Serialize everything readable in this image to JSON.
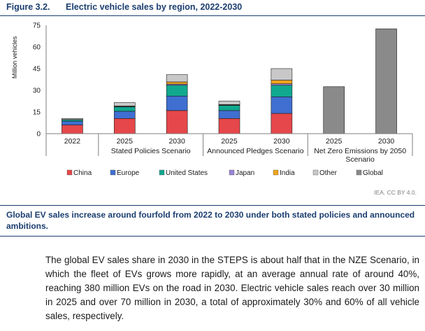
{
  "figure": {
    "number": "Figure 3.2.",
    "title": "Electric vehicle sales by region, 2022-2030",
    "credit": "IEA. CC BY 4.0.",
    "caption": "Global EV sales increase around fourfold from 2022 to 2030 under both stated policies and announced ambitions."
  },
  "body_text": "The global EV sales share in 2030 in the STEPS is about half that in the NZE Scenario, in which the fleet of EVs grows more rapidly, at an average annual rate of around 40%, reaching 380 million EVs on the road in 2030. Electric vehicle sales reach over 30 million in 2025 and over 70 million in 2030, a total of approximately 30% and 60% of all vehicle sales, respectively.",
  "chart_data": {
    "type": "bar",
    "stacked": true,
    "ylabel": "Million vehicles",
    "ylim": [
      0,
      75
    ],
    "yticks": [
      0,
      15,
      30,
      45,
      60,
      75
    ],
    "categories": [
      "2022",
      "2025",
      "2030",
      "2025",
      "2030",
      "2025",
      "2030"
    ],
    "groups": [
      {
        "label": "",
        "categories": [
          "2022"
        ]
      },
      {
        "label": "Stated Policies Scenario",
        "categories": [
          "2025",
          "2030"
        ]
      },
      {
        "label": "Announced Pledges Scenario",
        "categories": [
          "2025",
          "2030"
        ]
      },
      {
        "label": "Net Zero Emissions by 2050 Scenario",
        "categories": [
          "2025",
          "2030"
        ]
      }
    ],
    "series": [
      {
        "name": "China",
        "color": "#e6474a",
        "values": [
          6.0,
          10.5,
          16.0,
          10.5,
          14.0,
          0,
          0
        ]
      },
      {
        "name": "Europe",
        "color": "#3f6fd1",
        "values": [
          2.6,
          5.0,
          10.0,
          5.5,
          11.5,
          0,
          0
        ]
      },
      {
        "name": "United States",
        "color": "#10a98f",
        "values": [
          1.0,
          3.0,
          7.5,
          3.5,
          8.0,
          0,
          0
        ]
      },
      {
        "name": "Japan",
        "color": "#9a84d8",
        "values": [
          0.1,
          0.3,
          0.8,
          0.3,
          1.0,
          0,
          0
        ]
      },
      {
        "name": "India",
        "color": "#f2a51a",
        "values": [
          0.05,
          0.3,
          1.5,
          0.3,
          2.5,
          0,
          0
        ]
      },
      {
        "name": "Other",
        "color": "#c8c8c8",
        "values": [
          0.8,
          2.4,
          5.0,
          2.4,
          8.0,
          0,
          0
        ]
      },
      {
        "name": "Global",
        "color": "#8a8a8a",
        "values": [
          0,
          0,
          0,
          0,
          0,
          32.5,
          72.5
        ]
      }
    ],
    "legend_position": "bottom",
    "grid": false
  }
}
